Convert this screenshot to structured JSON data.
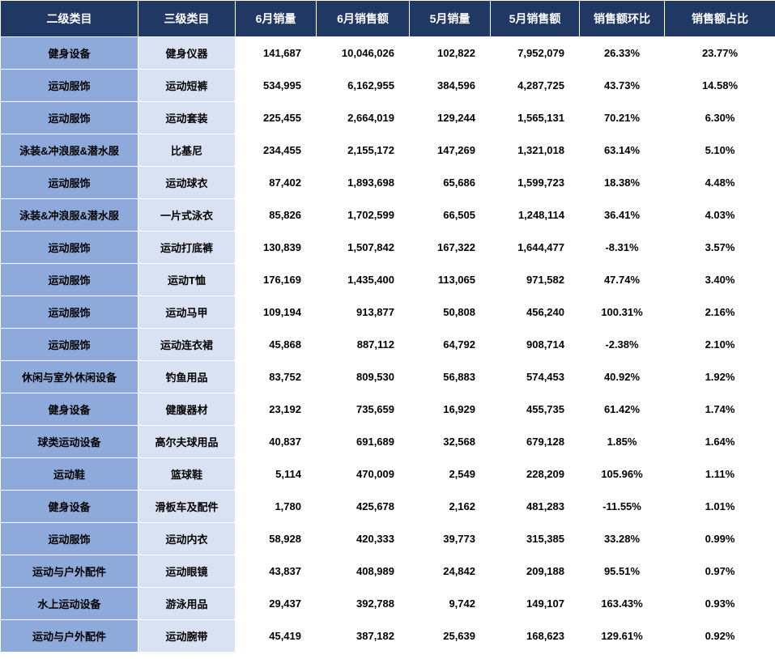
{
  "table": {
    "header_bg": "#1f3864",
    "header_color": "#ffffff",
    "cat2_bg": "#8eaadb",
    "cat3_bg": "#d9e2f3",
    "data_bg": "#ffffff",
    "border_color": "#ffffff",
    "font_family": "Microsoft YaHei",
    "header_fontsize": 14,
    "cell_fontsize": 13,
    "columns": [
      "二级类目",
      "三级类目",
      "6月销量",
      "6月销售额",
      "5月销量",
      "5月销售额",
      "销售额环比",
      "销售额占比"
    ],
    "col_align": [
      "center",
      "center",
      "right",
      "right",
      "right",
      "right",
      "center",
      "center"
    ],
    "rows": [
      [
        "健身设备",
        "健身仪器",
        "141,687",
        "10,046,026",
        "102,822",
        "7,952,079",
        "26.33%",
        "23.77%"
      ],
      [
        "运动服饰",
        "运动短裤",
        "534,995",
        "6,162,955",
        "384,596",
        "4,287,725",
        "43.73%",
        "14.58%"
      ],
      [
        "运动服饰",
        "运动套装",
        "225,455",
        "2,664,019",
        "129,244",
        "1,565,131",
        "70.21%",
        "6.30%"
      ],
      [
        "泳装&冲浪服&潜水服",
        "比基尼",
        "234,455",
        "2,155,172",
        "147,269",
        "1,321,018",
        "63.14%",
        "5.10%"
      ],
      [
        "运动服饰",
        "运动球衣",
        "87,402",
        "1,893,698",
        "65,686",
        "1,599,723",
        "18.38%",
        "4.48%"
      ],
      [
        "泳装&冲浪服&潜水服",
        "一片式泳衣",
        "85,826",
        "1,702,599",
        "66,505",
        "1,248,114",
        "36.41%",
        "4.03%"
      ],
      [
        "运动服饰",
        "运动打底裤",
        "130,839",
        "1,507,842",
        "167,322",
        "1,644,477",
        "-8.31%",
        "3.57%"
      ],
      [
        "运动服饰",
        "运动T恤",
        "176,169",
        "1,435,400",
        "113,065",
        "971,582",
        "47.74%",
        "3.40%"
      ],
      [
        "运动服饰",
        "运动马甲",
        "109,194",
        "913,877",
        "50,808",
        "456,240",
        "100.31%",
        "2.16%"
      ],
      [
        "运动服饰",
        "运动连衣裙",
        "45,868",
        "887,112",
        "64,792",
        "908,714",
        "-2.38%",
        "2.10%"
      ],
      [
        "休闲与室外休闲设备",
        "钓鱼用品",
        "83,752",
        "809,530",
        "56,883",
        "574,453",
        "40.92%",
        "1.92%"
      ],
      [
        "健身设备",
        "健腹器材",
        "23,192",
        "735,659",
        "16,929",
        "455,735",
        "61.42%",
        "1.74%"
      ],
      [
        "球类运动设备",
        "高尔夫球用品",
        "40,837",
        "691,689",
        "32,568",
        "679,128",
        "1.85%",
        "1.64%"
      ],
      [
        "运动鞋",
        "篮球鞋",
        "5,114",
        "470,009",
        "2,549",
        "228,209",
        "105.96%",
        "1.11%"
      ],
      [
        "健身设备",
        "滑板车及配件",
        "1,780",
        "425,678",
        "2,162",
        "481,283",
        "-11.55%",
        "1.01%"
      ],
      [
        "运动服饰",
        "运动内衣",
        "58,928",
        "420,333",
        "39,773",
        "315,385",
        "33.28%",
        "0.99%"
      ],
      [
        "运动与户外配件",
        "运动眼镜",
        "43,837",
        "408,989",
        "24,842",
        "209,188",
        "95.51%",
        "0.97%"
      ],
      [
        "水上运动设备",
        "游泳用品",
        "29,437",
        "392,788",
        "9,742",
        "149,107",
        "163.43%",
        "0.93%"
      ],
      [
        "运动与户外配件",
        "运动腕带",
        "45,419",
        "387,182",
        "25,639",
        "168,623",
        "129.61%",
        "0.92%"
      ]
    ]
  }
}
